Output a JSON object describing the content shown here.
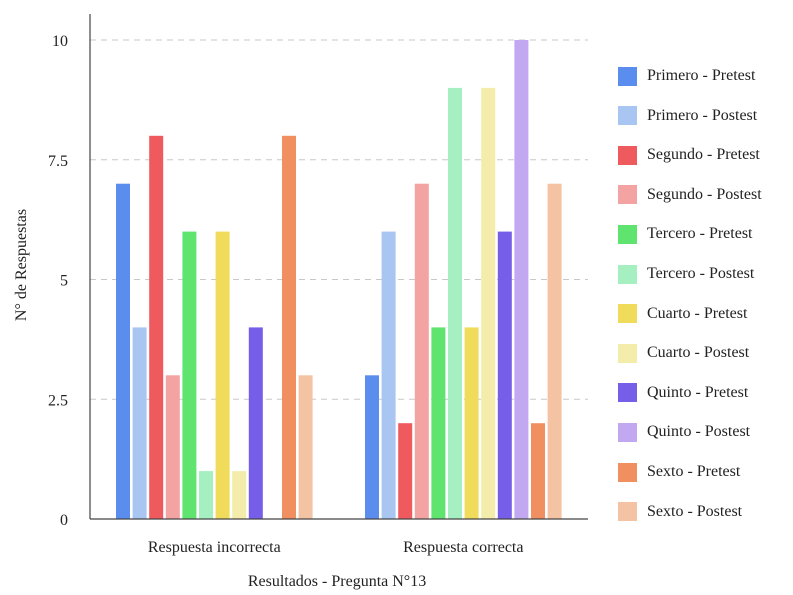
{
  "chart_data": {
    "type": "bar",
    "title": "",
    "xlabel": "Resultados - Pregunta N°13",
    "ylabel": "N° de Respuestas",
    "categories": [
      "Respuesta incorrecta",
      "Respuesta correcta"
    ],
    "ylim": [
      0,
      10
    ],
    "yticks": [
      0,
      2.5,
      5,
      7.5,
      10
    ],
    "ytick_labels": [
      "0",
      "2.5",
      "5",
      "7.5",
      "10"
    ],
    "grid": true,
    "legend_position": "right",
    "series": [
      {
        "name": "Primero - Pretest",
        "color": "#5b8def",
        "values": [
          7,
          3
        ]
      },
      {
        "name": "Primero - Postest",
        "color": "#a9c5f2",
        "values": [
          4,
          6
        ]
      },
      {
        "name": "Segundo - Pretest",
        "color": "#ee5a5e",
        "values": [
          8,
          2
        ]
      },
      {
        "name": "Segundo - Postest",
        "color": "#f4a3a3",
        "values": [
          3,
          7
        ]
      },
      {
        "name": "Tercero - Pretest",
        "color": "#5ee46f",
        "values": [
          6,
          4
        ]
      },
      {
        "name": "Tercero - Postest",
        "color": "#a6efc0",
        "values": [
          1,
          9
        ]
      },
      {
        "name": "Cuarto - Pretest",
        "color": "#f0dc5a",
        "values": [
          6,
          4
        ]
      },
      {
        "name": "Cuarto - Postest",
        "color": "#f4ecaa",
        "values": [
          1,
          9
        ]
      },
      {
        "name": "Quinto - Pretest",
        "color": "#765ee8",
        "values": [
          4,
          6
        ]
      },
      {
        "name": "Quinto - Postest",
        "color": "#c2a8f0",
        "values": [
          0,
          10
        ]
      },
      {
        "name": "Sexto - Pretest",
        "color": "#f09060",
        "values": [
          8,
          2
        ]
      },
      {
        "name": "Sexto - Postest",
        "color": "#f4c3a3",
        "values": [
          3,
          7
        ]
      }
    ]
  }
}
